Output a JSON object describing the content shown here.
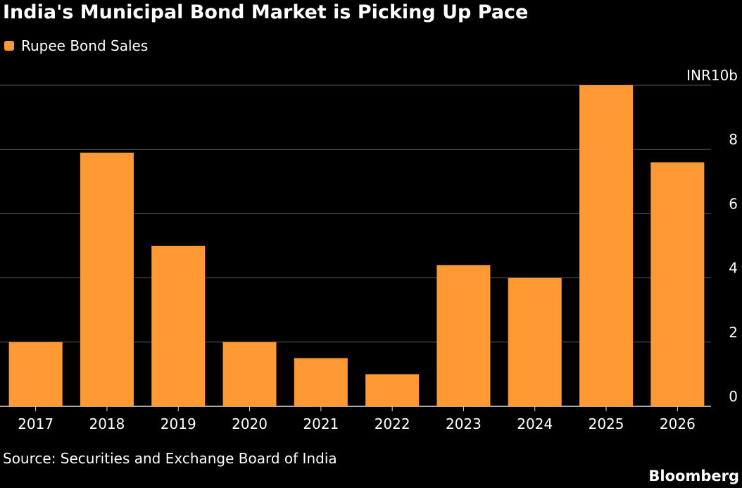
{
  "header": {
    "title": "India's Municipal Bond Market is Picking Up Pace"
  },
  "legend": {
    "label": "Rupee Bond Sales"
  },
  "footer": {
    "source": "Source: Securities and Exchange Board of India",
    "brand": "Bloomberg"
  },
  "colors": {
    "bar": "#ff9933",
    "background": "#000000",
    "grid": "#555555",
    "text": "#ffffff"
  },
  "chart_data": {
    "type": "bar",
    "title": "India's Municipal Bond Market is Picking Up Pace",
    "categories": [
      "2017",
      "2018",
      "2019",
      "2020",
      "2021",
      "2022",
      "2023",
      "2024",
      "2025",
      "2026"
    ],
    "series": [
      {
        "name": "Rupee Bond Sales",
        "values": [
          2.0,
          7.9,
          5.0,
          2.0,
          1.5,
          1.0,
          4.4,
          4.0,
          10.0,
          7.6
        ]
      }
    ],
    "yunit": "INR10b",
    "yticks": [
      "0",
      "2",
      "4",
      "6",
      "8",
      "INR10b"
    ],
    "ylim": [
      0,
      10
    ],
    "grid": true,
    "y_axis_position": "right",
    "legend_position": "top-left"
  }
}
